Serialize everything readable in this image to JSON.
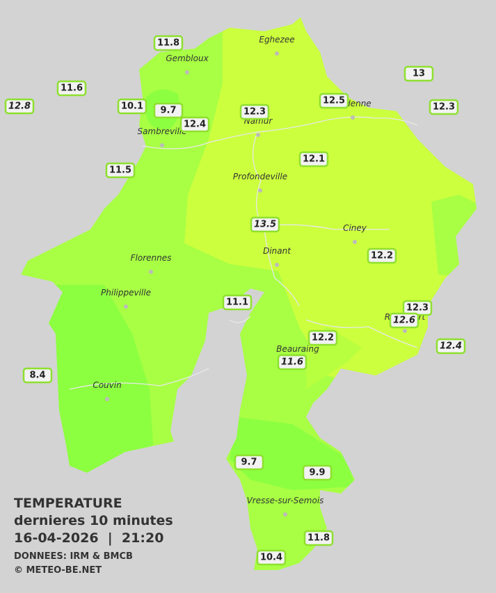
{
  "map": {
    "cities": [
      "Eghezee",
      "Gembloux",
      "Andenne",
      "Namur",
      "Sambreville",
      "Profondeville",
      "Ciney",
      "Dinant",
      "Florennes",
      "Philippeville",
      "Rochefort",
      "Beauraing",
      "Couvin",
      "Vresse-sur-Semois"
    ],
    "stations": [
      {
        "value": 11.8
      },
      {
        "value": 11.6
      },
      {
        "value": 12.8,
        "italic": true
      },
      {
        "value": 10.1
      },
      {
        "value": 9.7
      },
      {
        "value": 12.4
      },
      {
        "value": 12.3
      },
      {
        "value": 12.5
      },
      {
        "value": 13.0
      },
      {
        "value": 12.3
      },
      {
        "value": 11.5
      },
      {
        "value": 12.1
      },
      {
        "value": 13.5,
        "italic": true
      },
      {
        "value": 12.2
      },
      {
        "value": 11.1
      },
      {
        "value": 12.3
      },
      {
        "value": 12.6,
        "italic": true
      },
      {
        "value": 12.2
      },
      {
        "value": 12.4,
        "italic": true
      },
      {
        "value": 11.6,
        "italic": true
      },
      {
        "value": 8.4
      },
      {
        "value": 9.7
      },
      {
        "value": 9.9
      },
      {
        "value": 11.8
      },
      {
        "value": 10.4
      }
    ]
  },
  "legend": {
    "title": "TEMPERATURE",
    "subtitle": "dernieres 10 minutes",
    "datetime": "16-04-2026  |  21:20",
    "source": "DONNEES: IRM & BMCB",
    "copyright": "© METEO-BE.NET"
  }
}
